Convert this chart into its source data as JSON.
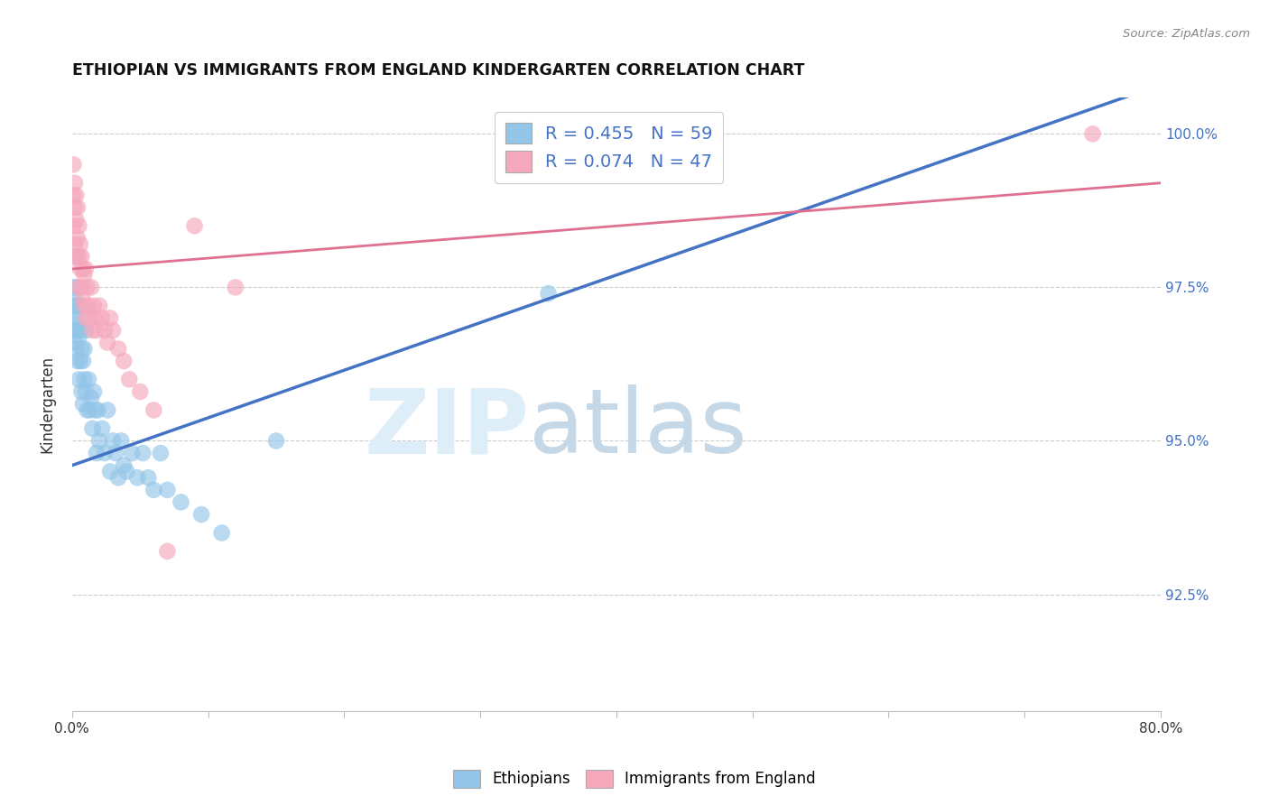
{
  "title": "ETHIOPIAN VS IMMIGRANTS FROM ENGLAND KINDERGARTEN CORRELATION CHART",
  "source": "Source: ZipAtlas.com",
  "ylabel": "Kindergarten",
  "ytick_labels": [
    "100.0%",
    "97.5%",
    "95.0%",
    "92.5%"
  ],
  "ytick_values": [
    1.0,
    0.975,
    0.95,
    0.925
  ],
  "xlim": [
    0.0,
    0.8
  ],
  "ylim": [
    0.906,
    1.006
  ],
  "blue_R": 0.455,
  "blue_N": 59,
  "pink_R": 0.074,
  "pink_N": 47,
  "blue_color": "#92C5E8",
  "pink_color": "#F5A8BC",
  "blue_line_color": "#4472C4",
  "pink_line_color": "#E07090",
  "legend_label_blue": "Ethiopians",
  "legend_label_pink": "Immigrants from England",
  "blue_x": [
    0.001,
    0.001,
    0.001,
    0.002,
    0.002,
    0.002,
    0.002,
    0.003,
    0.003,
    0.003,
    0.003,
    0.004,
    0.004,
    0.004,
    0.005,
    0.005,
    0.005,
    0.006,
    0.006,
    0.007,
    0.007,
    0.008,
    0.008,
    0.009,
    0.009,
    0.01,
    0.01,
    0.011,
    0.012,
    0.013,
    0.014,
    0.015,
    0.016,
    0.017,
    0.018,
    0.019,
    0.02,
    0.022,
    0.024,
    0.026,
    0.028,
    0.03,
    0.032,
    0.034,
    0.036,
    0.038,
    0.04,
    0.044,
    0.048,
    0.052,
    0.056,
    0.06,
    0.065,
    0.07,
    0.08,
    0.095,
    0.11,
    0.15,
    0.35
  ],
  "blue_y": [
    0.972,
    0.968,
    0.975,
    0.97,
    0.973,
    0.966,
    0.98,
    0.968,
    0.972,
    0.975,
    0.965,
    0.97,
    0.968,
    0.963,
    0.972,
    0.967,
    0.96,
    0.968,
    0.963,
    0.965,
    0.958,
    0.963,
    0.956,
    0.96,
    0.965,
    0.958,
    0.968,
    0.955,
    0.96,
    0.955,
    0.957,
    0.952,
    0.958,
    0.955,
    0.948,
    0.955,
    0.95,
    0.952,
    0.948,
    0.955,
    0.945,
    0.95,
    0.948,
    0.944,
    0.95,
    0.946,
    0.945,
    0.948,
    0.944,
    0.948,
    0.944,
    0.942,
    0.948,
    0.942,
    0.94,
    0.938,
    0.935,
    0.95,
    0.974
  ],
  "pink_x": [
    0.001,
    0.001,
    0.001,
    0.002,
    0.002,
    0.002,
    0.003,
    0.003,
    0.003,
    0.004,
    0.004,
    0.005,
    0.005,
    0.005,
    0.006,
    0.006,
    0.007,
    0.007,
    0.008,
    0.008,
    0.009,
    0.009,
    0.01,
    0.01,
    0.011,
    0.012,
    0.013,
    0.014,
    0.015,
    0.016,
    0.017,
    0.018,
    0.02,
    0.022,
    0.024,
    0.026,
    0.028,
    0.03,
    0.034,
    0.038,
    0.042,
    0.05,
    0.06,
    0.07,
    0.09,
    0.12,
    0.75
  ],
  "pink_y": [
    0.995,
    0.99,
    0.985,
    0.992,
    0.988,
    0.982,
    0.99,
    0.986,
    0.98,
    0.988,
    0.983,
    0.985,
    0.98,
    0.975,
    0.982,
    0.978,
    0.98,
    0.975,
    0.978,
    0.973,
    0.977,
    0.972,
    0.978,
    0.97,
    0.975,
    0.972,
    0.97,
    0.975,
    0.968,
    0.972,
    0.97,
    0.968,
    0.972,
    0.97,
    0.968,
    0.966,
    0.97,
    0.968,
    0.965,
    0.963,
    0.96,
    0.958,
    0.955,
    0.932,
    0.985,
    0.975,
    1.0
  ],
  "blue_trendline_x": [
    0.0,
    0.8
  ],
  "blue_trendline_y": [
    0.946,
    1.008
  ],
  "pink_trendline_x": [
    0.0,
    0.8
  ],
  "pink_trendline_y": [
    0.978,
    0.992
  ]
}
